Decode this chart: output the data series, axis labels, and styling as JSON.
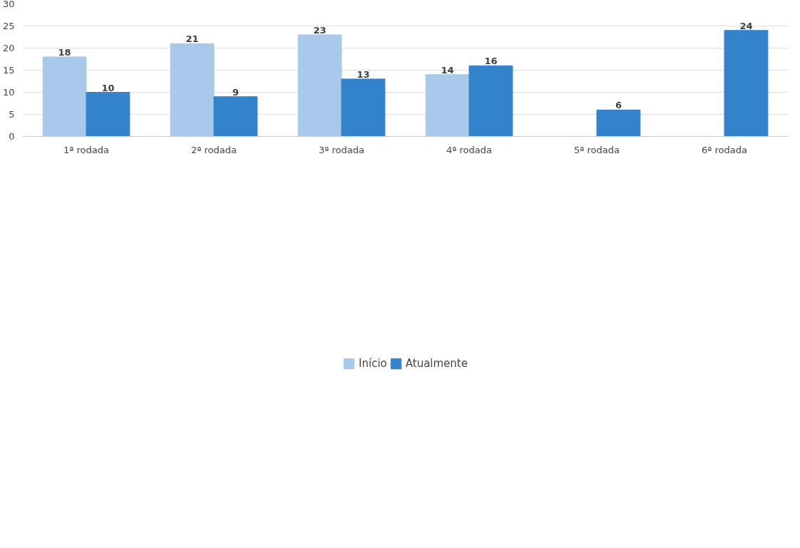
{
  "chart_data": {
    "type": "bar",
    "categories": [
      "1ª rodada",
      "2ª rodada",
      "3ª rodada",
      "4ª rodada",
      "5ª rodada",
      "6ª rodada"
    ],
    "series": [
      {
        "name": "Início",
        "color": "#a9c9ea",
        "values": [
          18,
          21,
          23,
          14,
          0,
          0
        ],
        "value_labels": [
          "18",
          "21",
          "23",
          "14",
          null,
          null
        ]
      },
      {
        "name": "Atualmente",
        "color": "#3282cc",
        "values": [
          10,
          9,
          13,
          16,
          6,
          24
        ],
        "value_labels": [
          "10",
          "9",
          "13",
          "16",
          "6",
          "24"
        ]
      }
    ],
    "ylim": [
      0,
      30
    ],
    "yticks": [
      0,
      5,
      10,
      15,
      20,
      25,
      30
    ],
    "grid": "y",
    "legend": "bottom"
  }
}
